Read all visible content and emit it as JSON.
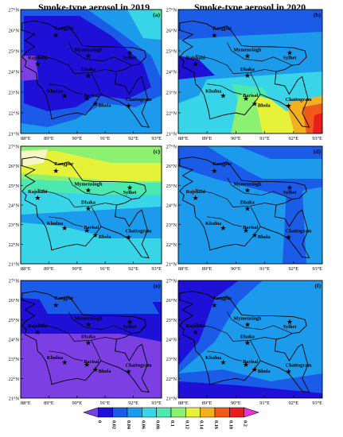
{
  "titles": {
    "left": "Smoke-type aerosol in 2019",
    "right": "Smoke-type aerosol in 2020"
  },
  "axes": {
    "lat_labels": [
      "27°N",
      "26°N",
      "25°N",
      "24°N",
      "23°N",
      "22°N",
      "21°N"
    ],
    "lon_labels": [
      "88°E",
      "89°E",
      "90°E",
      "91°E",
      "92°E",
      "93°E"
    ]
  },
  "cities": [
    {
      "name": "Rangpur",
      "lon": 89.25,
      "lat": 25.75
    },
    {
      "name": "Rajshahi",
      "lon": 88.6,
      "lat": 24.37
    },
    {
      "name": "Mymensingh",
      "lon": 90.4,
      "lat": 24.75
    },
    {
      "name": "Sylhet",
      "lon": 91.87,
      "lat": 24.9
    },
    {
      "name": "Dhaka",
      "lon": 90.4,
      "lat": 23.81
    },
    {
      "name": "Khulna",
      "lon": 89.56,
      "lat": 22.82
    },
    {
      "name": "Barisal",
      "lon": 90.35,
      "lat": 22.7
    },
    {
      "name": "Bhola",
      "lon": 90.65,
      "lat": 22.45
    },
    {
      "name": "Chattogram",
      "lon": 91.83,
      "lat": 22.35
    }
  ],
  "panels": [
    {
      "label": "(a)"
    },
    {
      "label": "(b)"
    },
    {
      "label": "(c)"
    },
    {
      "label": "(d)"
    },
    {
      "label": "(e)"
    },
    {
      "label": "(f)"
    }
  ],
  "colorbar": {
    "ticks": [
      "0",
      "0.02",
      "0.04",
      "0.06",
      "0.08",
      "0.1",
      "0.12",
      "0.14",
      "0.16",
      "0.18",
      "0.2"
    ],
    "colors": [
      "#7B3FE4",
      "#1E10D6",
      "#1A5BE8",
      "#1C9BEC",
      "#38D4E8",
      "#4CE8B0",
      "#8CF070",
      "#E6F23A",
      "#F2B021",
      "#F05A18",
      "#E81E1E",
      "#F030D8"
    ]
  }
}
